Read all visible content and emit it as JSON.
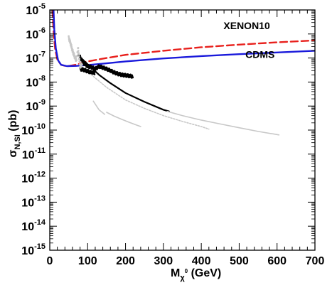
{
  "chart_data": {
    "type": "line",
    "title": "",
    "xlabel": "M_χ⁰ (GeV)",
    "xlabel_main": "M",
    "xlabel_sub": "χ",
    "xlabel_sup": "0",
    "xlabel_unit": "(GeV)",
    "ylabel_main": "σ",
    "ylabel_sub": "N,SI",
    "ylabel_unit": "(pb)",
    "xlim": [
      0,
      700
    ],
    "ylim": [
      1e-15,
      1e-05
    ],
    "yscale": "log",
    "grid": false,
    "x_ticks": [
      "0",
      "100",
      "200",
      "300",
      "400",
      "500",
      "600",
      "700"
    ],
    "y_ticks": [
      {
        "exp": "-5",
        "value": 1e-05
      },
      {
        "exp": "-6",
        "value": 1e-06
      },
      {
        "exp": "-7",
        "value": 1e-07
      },
      {
        "exp": "-8",
        "value": 1e-08
      },
      {
        "exp": "-9",
        "value": 1e-09
      },
      {
        "exp": "-10",
        "value": 1e-10
      },
      {
        "exp": "-11",
        "value": 1e-11
      },
      {
        "exp": "-12",
        "value": 1e-12
      },
      {
        "exp": "-13",
        "value": 1e-13
      },
      {
        "exp": "-14",
        "value": 1e-14
      },
      {
        "exp": "-15",
        "value": 1e-15
      }
    ],
    "series": [
      {
        "name": "XENON10",
        "color": "#e8201c",
        "style": "dashed",
        "points": [
          [
            7,
            1e-05
          ],
          [
            10,
            1.3e-06
          ],
          [
            14,
            2.5e-07
          ],
          [
            20,
            8.5e-08
          ],
          [
            30,
            5.2e-08
          ],
          [
            45,
            4.5e-08
          ],
          [
            70,
            5.3e-08
          ],
          [
            100,
            7.2e-08
          ],
          [
            150,
            1e-07
          ],
          [
            200,
            1.35e-07
          ],
          [
            300,
            2e-07
          ],
          [
            400,
            2.8e-07
          ],
          [
            500,
            3.6e-07
          ],
          [
            600,
            4.5e-07
          ],
          [
            700,
            5.4e-07
          ]
        ]
      },
      {
        "name": "CDMS",
        "color": "#1a1adb",
        "style": "solid",
        "points": [
          [
            10,
            1e-05
          ],
          [
            12,
            1.5e-06
          ],
          [
            16,
            2.5e-07
          ],
          [
            22,
            8e-08
          ],
          [
            30,
            5.2e-08
          ],
          [
            45,
            4.6e-08
          ],
          [
            70,
            4.7e-08
          ],
          [
            100,
            5.1e-08
          ],
          [
            150,
            6e-08
          ],
          [
            200,
            7.2e-08
          ],
          [
            300,
            9.6e-08
          ],
          [
            400,
            1.2e-07
          ],
          [
            500,
            1.45e-07
          ],
          [
            600,
            1.7e-07
          ],
          [
            700,
            2e-07
          ]
        ]
      },
      {
        "color": "#000000",
        "style": "scatter-band",
        "points": [
          [
            80,
            1.1e-07
          ],
          [
            90,
            6e-08
          ],
          [
            100,
            4.5e-08
          ],
          [
            110,
            4.2e-08
          ],
          [
            120,
            3.5e-08
          ],
          [
            130,
            4.5e-08
          ],
          [
            140,
            4e-08
          ],
          [
            150,
            3.5e-08
          ],
          [
            160,
            3e-08
          ],
          [
            170,
            2.5e-08
          ],
          [
            180,
            2.2e-08
          ],
          [
            190,
            2e-08
          ],
          [
            200,
            1.9e-08
          ],
          [
            210,
            1.8e-08
          ],
          [
            220,
            1.7e-08
          ]
        ]
      },
      {
        "color": "#000000",
        "style": "scatter-band",
        "points": [
          [
            80,
            3.5e-08
          ],
          [
            90,
            3.2e-08
          ],
          [
            100,
            2.8e-08
          ],
          [
            110,
            2.5e-08
          ],
          [
            120,
            2.4e-08
          ]
        ]
      },
      {
        "color": "#000000",
        "style": "solid",
        "points": [
          [
            75,
            1.3e-07
          ],
          [
            100,
            5.5e-08
          ],
          [
            130,
            2e-08
          ],
          [
            160,
            9e-09
          ],
          [
            200,
            3.5e-09
          ],
          [
            250,
            1.5e-09
          ],
          [
            300,
            7e-10
          ],
          [
            315,
            6e-10
          ]
        ]
      },
      {
        "color": "#c8c8c8",
        "style": "solid",
        "points": [
          [
            310,
            6e-10
          ],
          [
            350,
            4e-10
          ],
          [
            400,
            2.6e-10
          ],
          [
            450,
            1.8e-10
          ],
          [
            500,
            1.25e-10
          ],
          [
            550,
            8.8e-11
          ],
          [
            600,
            6.5e-11
          ],
          [
            605,
            6.3e-11
          ]
        ]
      },
      {
        "color": "#c8c8c8",
        "style": "dotted",
        "points": [
          [
            110,
            2e-08
          ],
          [
            150,
            6e-09
          ],
          [
            200,
            1.8e-09
          ],
          [
            250,
            8e-10
          ],
          [
            300,
            4e-10
          ],
          [
            350,
            2.3e-10
          ],
          [
            400,
            1.4e-10
          ],
          [
            420,
            1.1e-10
          ]
        ]
      },
      {
        "color": "#c8c8c8",
        "style": "solid",
        "points": [
          [
            115,
            1.6e-09
          ],
          [
            130,
            7e-10
          ],
          [
            145,
            4.5e-10
          ]
        ]
      },
      {
        "color": "#c8c8c8",
        "style": "solid",
        "points": [
          [
            150,
            5.5e-10
          ],
          [
            170,
            3.8e-10
          ],
          [
            190,
            2.8e-10
          ],
          [
            210,
            2.1e-10
          ],
          [
            230,
            1.6e-10
          ],
          [
            240,
            1.4e-10
          ]
        ]
      },
      {
        "color": "#c8c8c8",
        "style": "scatter-band",
        "points": [
          [
            50,
            7e-07
          ],
          [
            55,
            4e-07
          ],
          [
            60,
            2e-07
          ],
          [
            65,
            1.2e-07
          ],
          [
            70,
            8e-08
          ],
          [
            75,
            2.5e-07
          ],
          [
            80,
            4e-08
          ],
          [
            85,
            6e-08
          ]
        ]
      }
    ],
    "annotations": [
      {
        "text": "XENON10",
        "x": 520,
        "y": 1.6e-06
      },
      {
        "text": "CDMS",
        "x": 555,
        "y": 1e-07
      }
    ]
  }
}
